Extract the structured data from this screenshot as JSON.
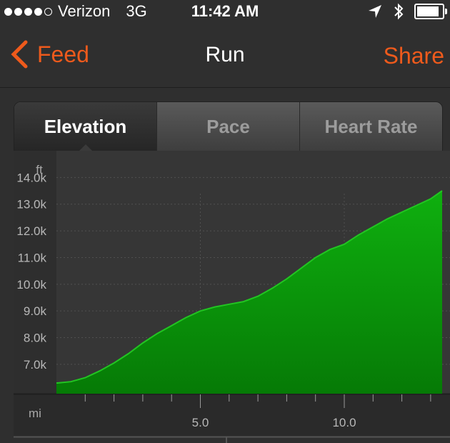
{
  "status_bar": {
    "carrier": "Verizon",
    "network": "3G",
    "time": "11:42 AM",
    "location_icon": "location-arrow-icon",
    "bluetooth_icon": "bluetooth-icon",
    "battery_icon": "battery-icon"
  },
  "nav": {
    "back_label": "Feed",
    "title": "Run",
    "share_label": "Share",
    "accent_color": "#ee5a1c"
  },
  "tabs": [
    {
      "label": "Elevation",
      "active": true
    },
    {
      "label": "Pace",
      "active": false
    },
    {
      "label": "Heart Rate",
      "active": false
    }
  ],
  "chart_data": {
    "type": "area",
    "ylabel": "ft",
    "xlabel": "mi",
    "ytick_labels": [
      "7.0k",
      "8.0k",
      "9.0k",
      "10.0k",
      "11.0k",
      "12.0k",
      "13.0k",
      "14.0k"
    ],
    "yticks": [
      7000,
      8000,
      9000,
      10000,
      11000,
      12000,
      13000,
      14000
    ],
    "xtick_labels": [
      "5.0",
      "10.0"
    ],
    "xticks": [
      5,
      10
    ],
    "xlim": [
      0,
      13.4
    ],
    "ylim": [
      5900,
      15000
    ],
    "x": [
      0,
      0.5,
      1,
      1.5,
      2,
      2.5,
      3,
      3.5,
      4,
      4.5,
      5,
      5.5,
      6,
      6.5,
      7,
      7.5,
      8,
      8.5,
      9,
      9.5,
      10,
      10.5,
      11,
      11.5,
      12,
      12.5,
      13,
      13.4
    ],
    "values": [
      6300,
      6350,
      6500,
      6750,
      7050,
      7400,
      7800,
      8150,
      8450,
      8750,
      9000,
      9150,
      9250,
      9350,
      9550,
      9850,
      10200,
      10600,
      11000,
      11300,
      11500,
      11850,
      12150,
      12450,
      12700,
      12950,
      13200,
      13500
    ],
    "fill_color": "#0aa80a",
    "line_color": "#22c522",
    "grid": true
  }
}
